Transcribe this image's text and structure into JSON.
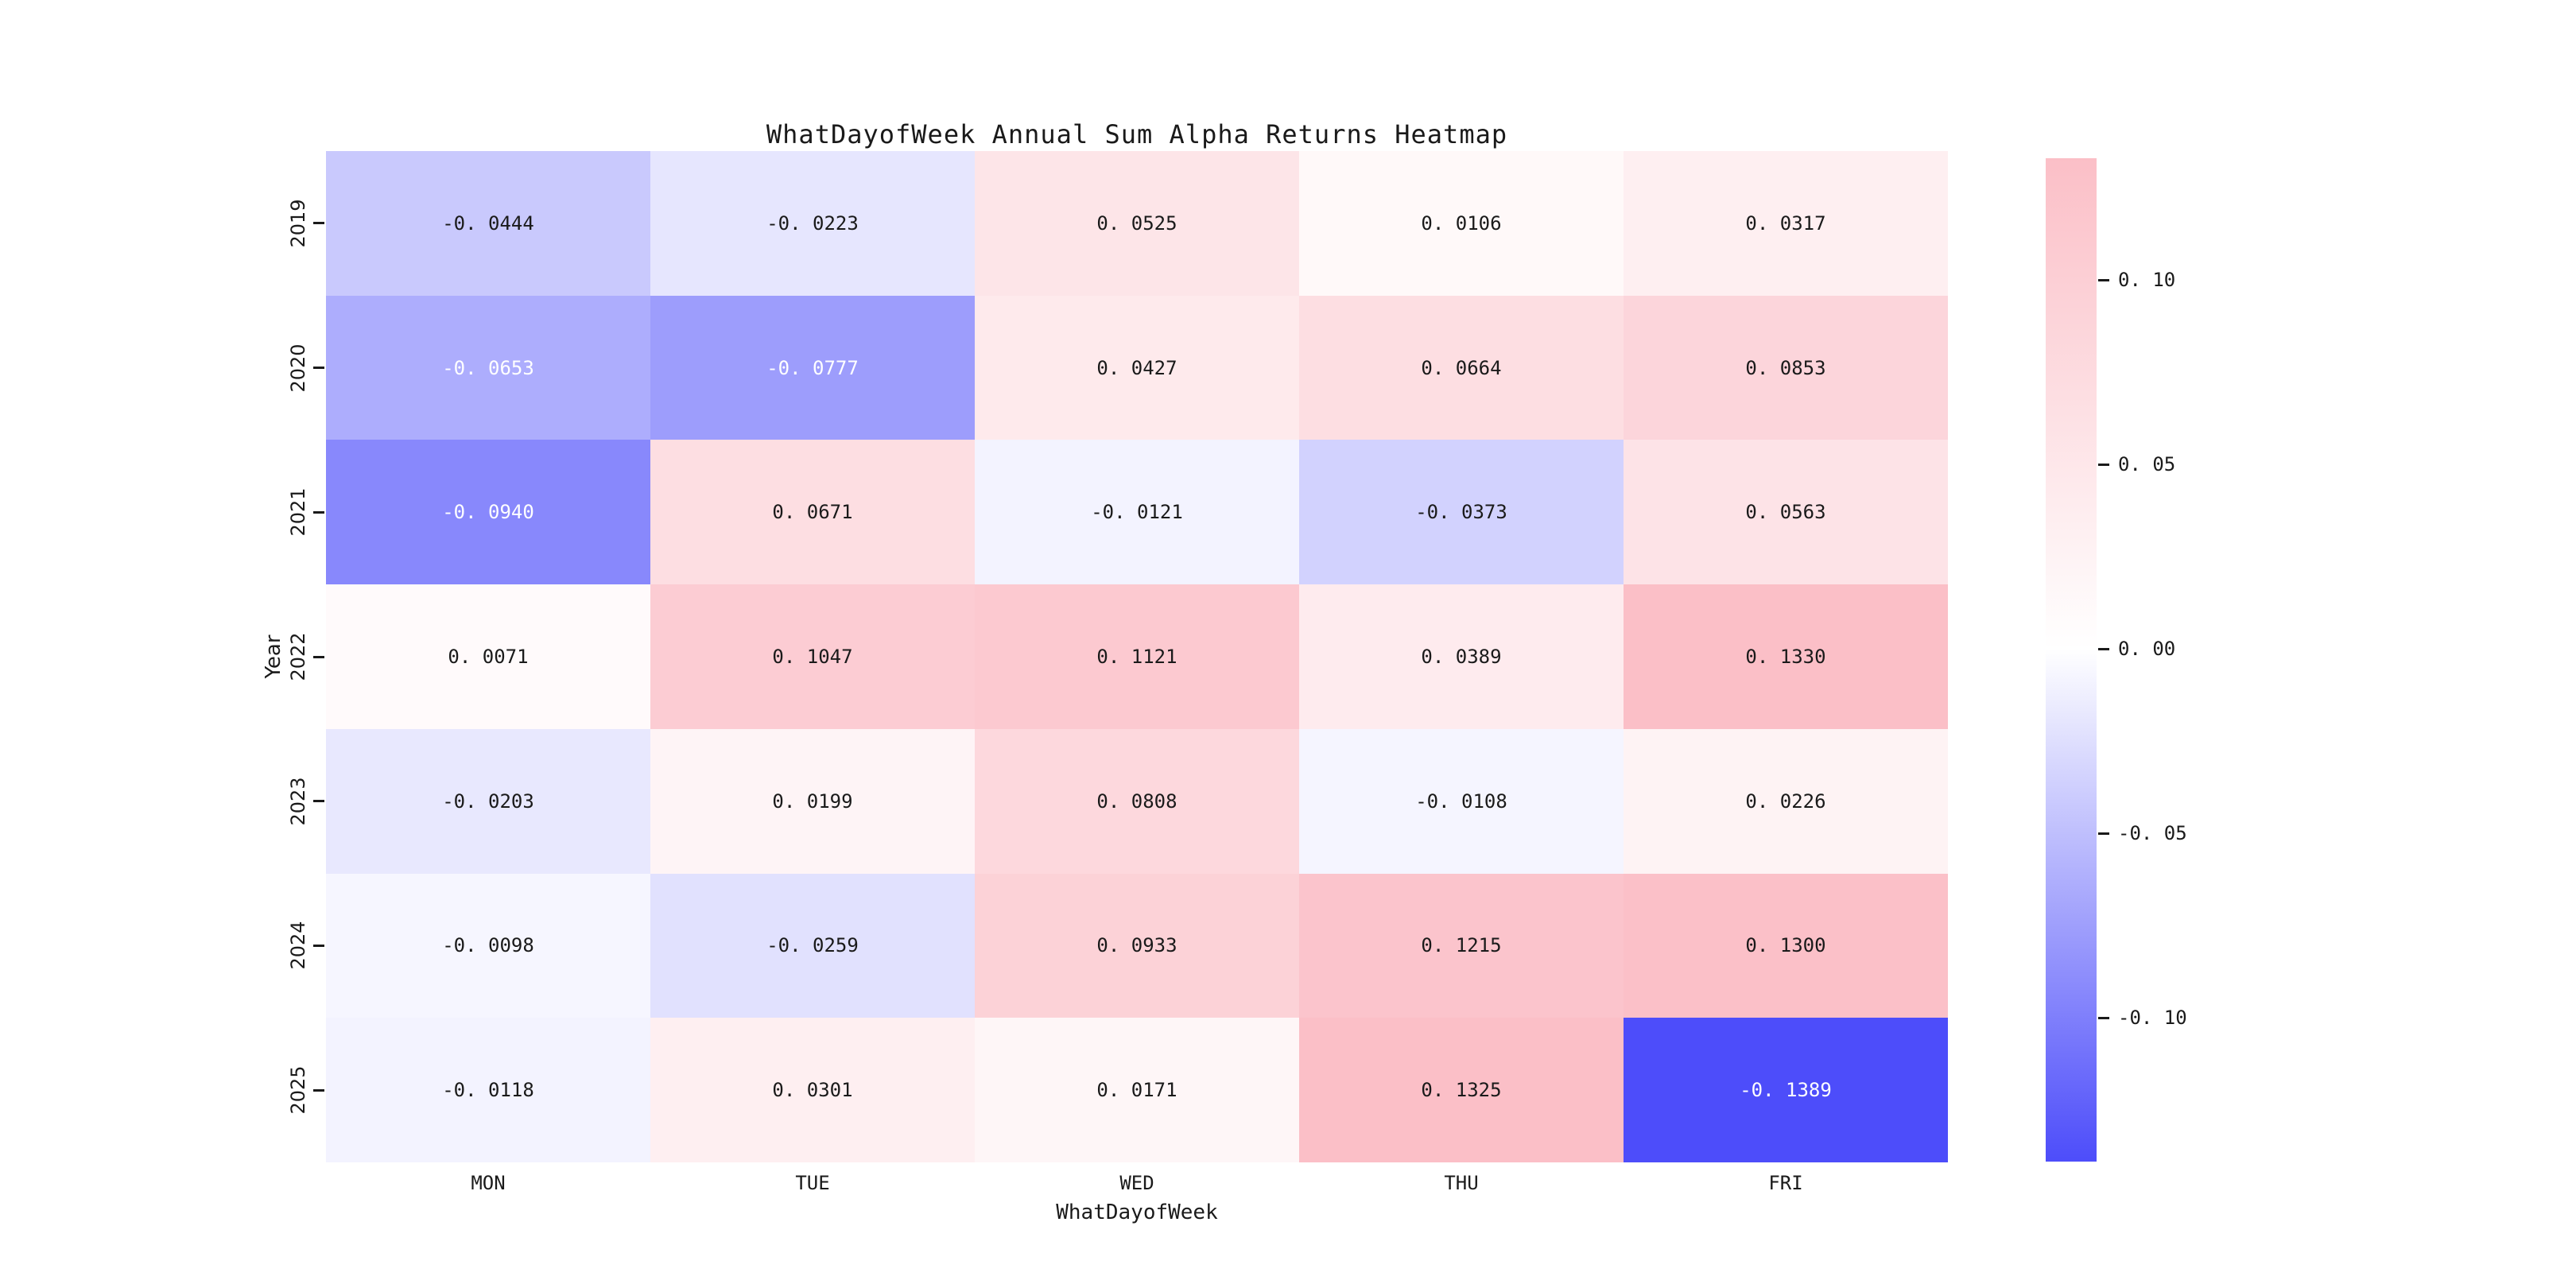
{
  "chart_data": {
    "type": "heatmap",
    "title": "WhatDayofWeek Annual Sum Alpha Returns Heatmap",
    "xlabel": "WhatDayofWeek",
    "ylabel": "Year",
    "columns": [
      "MON",
      "TUE",
      "WED",
      "THU",
      "FRI"
    ],
    "rows": [
      "2019",
      "2020",
      "2021",
      "2022",
      "2023",
      "2024",
      "2025"
    ],
    "values": [
      [
        -0.0444,
        -0.0223,
        0.0525,
        0.0106,
        0.0317
      ],
      [
        -0.0653,
        -0.0777,
        0.0427,
        0.0664,
        0.0853
      ],
      [
        -0.094,
        0.0671,
        -0.0121,
        -0.0373,
        0.0563
      ],
      [
        0.0071,
        0.1047,
        0.1121,
        0.0389,
        0.133
      ],
      [
        -0.0203,
        0.0199,
        0.0808,
        -0.0108,
        0.0226
      ],
      [
        -0.0098,
        -0.0259,
        0.0933,
        0.1215,
        0.13
      ],
      [
        -0.0118,
        0.0301,
        0.0171,
        0.1325,
        -0.1389
      ]
    ],
    "annotation_decimals": 4,
    "vmin": -0.1389,
    "vmax": 0.133,
    "grid": false,
    "colorbar": {
      "position": "right",
      "tick_values": [
        0.1,
        0.05,
        0.0,
        -0.05,
        -0.1
      ],
      "tick_decimals": 2
    },
    "colors": {
      "negative_end": "#4D4DFA",
      "center": "#FFFFFF",
      "positive_end": "#FBBFC7",
      "dark_text": "#1a1a1a",
      "light_text": "#ffffff"
    }
  }
}
